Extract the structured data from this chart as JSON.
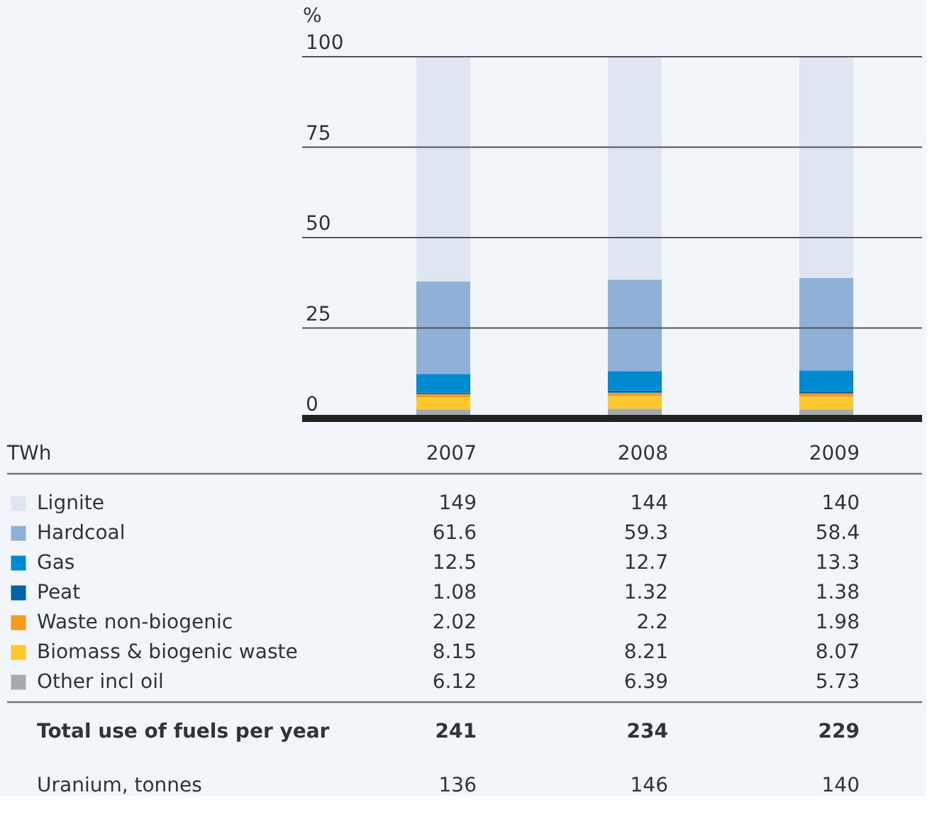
{
  "chart_data": [
    {
      "type": "bar",
      "stacked": true,
      "ylabel": "%",
      "grid": "y",
      "categories": [
        null,
        null,
        null
      ],
      "ylim": [
        0,
        100
      ],
      "yticks": [
        0,
        25,
        50,
        75,
        100
      ],
      "series": [
        {
          "color": "#a7a9ac",
          "values": [
            2.5,
            2.7,
            2.5
          ]
        },
        {
          "color": "#fdc82f",
          "values": [
            3.4,
            3.5,
            3.5
          ]
        },
        {
          "color": "#f39c1f",
          "values": [
            0.8,
            0.9,
            0.9
          ]
        },
        {
          "color": "#0063a6",
          "values": [
            0.4,
            0.6,
            0.6
          ]
        },
        {
          "color": "#008bd0",
          "values": [
            5.2,
            5.4,
            5.8
          ]
        },
        {
          "color": "#8fb1d8",
          "values": [
            25.6,
            25.3,
            25.5
          ]
        },
        {
          "color": "#dee6f1",
          "values": [
            62.0,
            61.5,
            61.2
          ]
        }
      ]
    },
    {
      "type": "other",
      "legend_title": "TWh",
      "data_labels": true,
      "legend": "bottom",
      "categories": [
        "2007",
        "2008",
        "2009"
      ],
      "series": [
        {
          "name": "Lignite",
          "color": "#dee6f1",
          "values": [
            149,
            144,
            140
          ]
        },
        {
          "name": "Hardcoal",
          "color": "#8fb1d8",
          "values": [
            61.6,
            59.3,
            58.4
          ]
        },
        {
          "name": "Gas",
          "color": "#008bd0",
          "values": [
            12.5,
            12.7,
            13.3
          ]
        },
        {
          "name": "Peat",
          "color": "#0063a6",
          "values": [
            1.08,
            1.32,
            1.38
          ]
        },
        {
          "name": "Waste non-biogenic",
          "color": "#f39c1f",
          "values": [
            2.02,
            2.2,
            1.98
          ]
        },
        {
          "name": "Biomass & biogenic waste",
          "color": "#fdc82f",
          "values": [
            8.15,
            8.21,
            8.07
          ]
        },
        {
          "name": "Other incl oil",
          "color": "#a7a9ac",
          "values": [
            6.12,
            6.39,
            5.73
          ]
        }
      ],
      "totals": [
        "241",
        "234",
        "229"
      ],
      "annotations": [
        "Total use of fuels per year",
        "Uranium, tonnes",
        "136",
        "146",
        "140"
      ]
    }
  ]
}
